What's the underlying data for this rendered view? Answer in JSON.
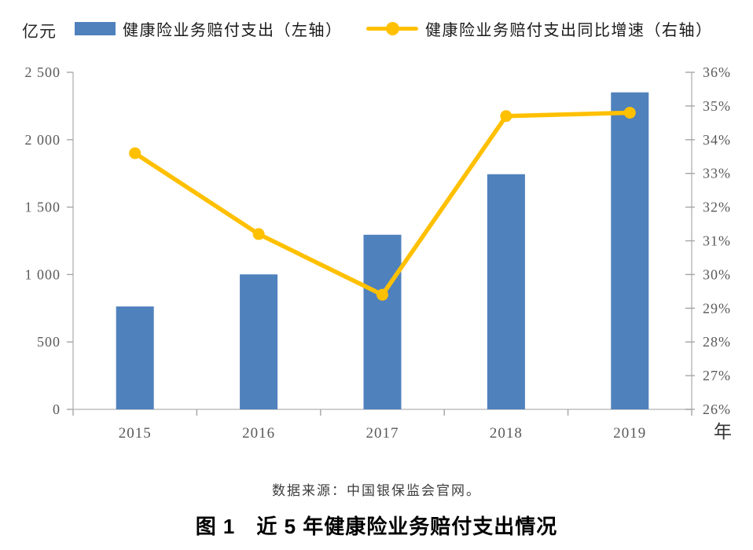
{
  "chart_data": {
    "type": "bar",
    "combo": "bar+line dual axis",
    "title": "图 1　近 5 年健康险业务赔付支出情况",
    "categories": [
      "2015",
      "2016",
      "2017",
      "2018",
      "2019"
    ],
    "series": [
      {
        "name": "健康险业务赔付支出（左轴）",
        "type": "bar",
        "axis": "left",
        "values": [
          763,
          1001,
          1295,
          1744,
          2351
        ],
        "color": "#4F81BD"
      },
      {
        "name": "健康险业务赔付支出同比增速（右轴）",
        "type": "line",
        "axis": "right",
        "values": [
          33.6,
          31.2,
          29.4,
          34.7,
          34.8
        ],
        "color": "#FFC000"
      }
    ],
    "left_axis": {
      "unit": "亿元",
      "min": 0,
      "max": 2500,
      "tick_step": 500,
      "tick_labels": [
        "0",
        "500",
        "1 000",
        "1 500",
        "2 000",
        "2 500"
      ]
    },
    "right_axis": {
      "min": 26,
      "max": 36,
      "tick_step": 1,
      "tick_labels": [
        "26%",
        "27%",
        "28%",
        "29%",
        "30%",
        "31%",
        "32%",
        "33%",
        "34%",
        "35%",
        "36%"
      ]
    },
    "x_axis": {
      "unit": "年"
    },
    "legend_position": "top",
    "grid": false,
    "colors": {
      "axis_line": "#BFBFBF",
      "tick_mark": "#A6A6A6",
      "tick_label": "#595959",
      "x_unit_label": "#333333"
    }
  },
  "footer": {
    "source": "数据来源：中国银保监会官网。",
    "caption": "图 1　近 5 年健康险业务赔付支出情况"
  }
}
